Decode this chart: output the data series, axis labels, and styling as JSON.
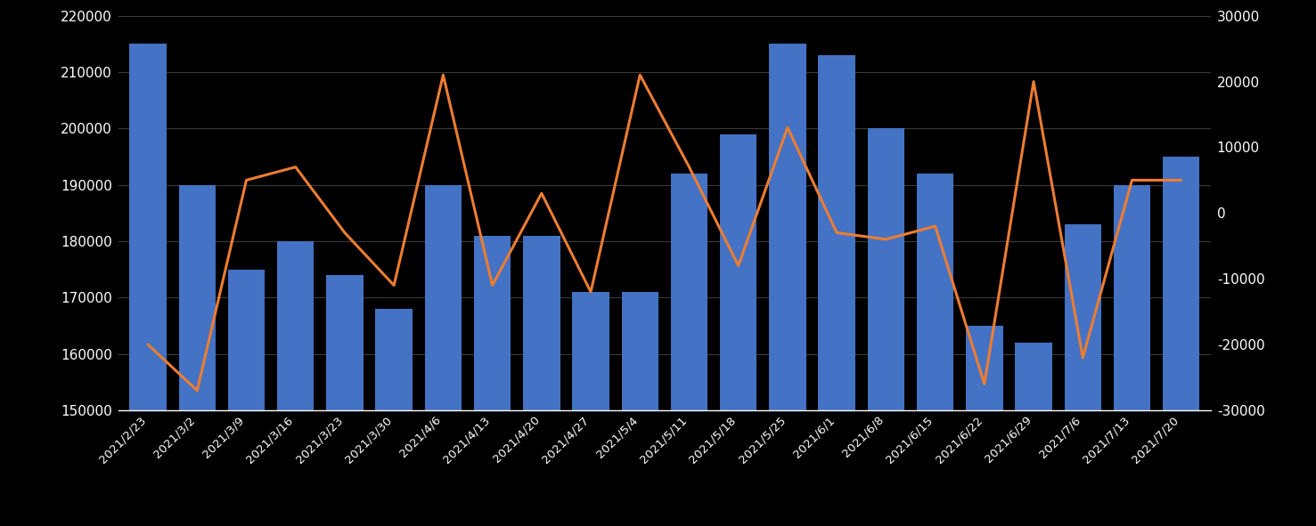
{
  "categories": [
    "2021/2/23",
    "2021/3/2",
    "2021/3/9",
    "2021/3/16",
    "2021/3/23",
    "2021/3/30",
    "2021/4/6",
    "2021/4/13",
    "2021/4/20",
    "2021/4/27",
    "2021/5/4",
    "2021/5/11",
    "2021/5/18",
    "2021/5/25",
    "2021/6/1",
    "2021/6/8",
    "2021/6/15",
    "2021/6/22",
    "2021/6/29",
    "2021/7/6",
    "2021/7/13",
    "2021/7/20"
  ],
  "bar_values": [
    215000,
    190000,
    175000,
    180000,
    174000,
    168000,
    190000,
    181000,
    181000,
    171000,
    171000,
    192000,
    199000,
    215000,
    213000,
    200000,
    192000,
    165000,
    162000,
    183000,
    190000,
    195000
  ],
  "line_values": [
    -20000,
    -27000,
    5000,
    7000,
    -3000,
    -11000,
    21000,
    -11000,
    3000,
    -12000,
    21000,
    7000,
    -8000,
    13000,
    -3000,
    -4000,
    -2000,
    -26000,
    20000,
    -22000,
    5000,
    5000
  ],
  "bar_color": "#4472C4",
  "line_color": "#ED7D31",
  "background_color": "#000000",
  "text_color": "#FFFFFF",
  "grid_color": "#3A3A3A",
  "ylim_left": [
    150000,
    220000
  ],
  "ylim_right": [
    -30000,
    30000
  ],
  "yticks_left": [
    150000,
    160000,
    170000,
    180000,
    190000,
    200000,
    210000,
    220000
  ],
  "yticks_right": [
    -30000,
    -20000,
    -10000,
    0,
    10000,
    20000,
    30000
  ],
  "bar_width": 0.75,
  "line_width": 2.2,
  "tick_fontsize": 11,
  "xlabel_rotation": 45
}
